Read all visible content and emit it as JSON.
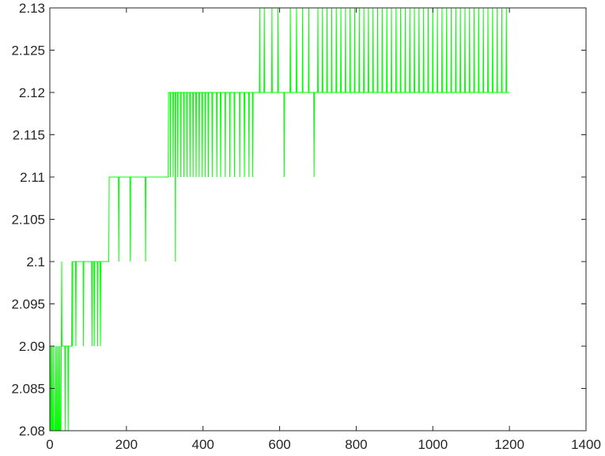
{
  "chart_data": {
    "type": "line",
    "title": "",
    "xlabel": "",
    "ylabel": "",
    "xlim": [
      0,
      1400
    ],
    "ylim": [
      2.08,
      2.13
    ],
    "grid": false,
    "legend": "none",
    "x_ticks": [
      0,
      200,
      400,
      600,
      800,
      1000,
      1200,
      1400
    ],
    "x_tick_labels": [
      "0",
      "200",
      "400",
      "600",
      "800",
      "1000",
      "1200",
      "1400"
    ],
    "y_ticks": [
      2.08,
      2.085,
      2.09,
      2.095,
      2.1,
      2.105,
      2.11,
      2.115,
      2.12,
      2.125,
      2.13
    ],
    "y_tick_labels": [
      "2.08",
      "2.085",
      "2.09",
      "2.095",
      "2.1",
      "2.105",
      "2.11",
      "2.115",
      "2.12",
      "2.125",
      "2.13"
    ],
    "series": [
      {
        "color": "#00ff00",
        "x_start": 1,
        "x_end": 1200,
        "baseline": [
          {
            "from": 1,
            "to": 30,
            "value": 2.08
          },
          {
            "from": 30,
            "to": 60,
            "value": 2.09
          },
          {
            "from": 60,
            "to": 155,
            "value": 2.1
          },
          {
            "from": 155,
            "to": 310,
            "value": 2.11
          },
          {
            "from": 310,
            "to": 540,
            "value": 2.12
          },
          {
            "from": 540,
            "to": 1200,
            "value": 2.12
          }
        ],
        "outliers": [
          {
            "x": 2,
            "value": 2.09
          },
          {
            "x": 5,
            "value": 2.09
          },
          {
            "x": 9,
            "value": 2.09
          },
          {
            "x": 14,
            "value": 2.09
          },
          {
            "x": 18,
            "value": 2.09
          },
          {
            "x": 22,
            "value": 2.09
          },
          {
            "x": 26,
            "value": 2.09
          },
          {
            "x": 31,
            "value": 2.1
          },
          {
            "x": 40,
            "value": 2.08
          },
          {
            "x": 48,
            "value": 2.08
          },
          {
            "x": 58,
            "value": 2.1
          },
          {
            "x": 64,
            "value": 2.1
          },
          {
            "x": 68,
            "value": 2.09
          },
          {
            "x": 72,
            "value": 2.1
          },
          {
            "x": 80,
            "value": 2.1
          },
          {
            "x": 88,
            "value": 2.09
          },
          {
            "x": 95,
            "value": 2.1
          },
          {
            "x": 103,
            "value": 2.1
          },
          {
            "x": 110,
            "value": 2.09
          },
          {
            "x": 116,
            "value": 2.09
          },
          {
            "x": 120,
            "value": 2.1
          },
          {
            "x": 125,
            "value": 2.09
          },
          {
            "x": 132,
            "value": 2.09
          },
          {
            "x": 158,
            "value": 2.11
          },
          {
            "x": 172,
            "value": 2.11
          },
          {
            "x": 180,
            "value": 2.1
          },
          {
            "x": 188,
            "value": 2.11
          },
          {
            "x": 200,
            "value": 2.11
          },
          {
            "x": 210,
            "value": 2.1
          },
          {
            "x": 220,
            "value": 2.11
          },
          {
            "x": 232,
            "value": 2.11
          },
          {
            "x": 245,
            "value": 2.11
          },
          {
            "x": 250,
            "value": 2.1
          },
          {
            "x": 308,
            "value": 2.11
          },
          {
            "x": 315,
            "value": 2.11
          },
          {
            "x": 322,
            "value": 2.11
          },
          {
            "x": 328,
            "value": 2.1
          },
          {
            "x": 334,
            "value": 2.11
          },
          {
            "x": 342,
            "value": 2.11
          },
          {
            "x": 350,
            "value": 2.11
          },
          {
            "x": 358,
            "value": 2.11
          },
          {
            "x": 366,
            "value": 2.11
          },
          {
            "x": 374,
            "value": 2.11
          },
          {
            "x": 382,
            "value": 2.11
          },
          {
            "x": 390,
            "value": 2.11
          },
          {
            "x": 398,
            "value": 2.11
          },
          {
            "x": 406,
            "value": 2.11
          },
          {
            "x": 414,
            "value": 2.11
          },
          {
            "x": 424,
            "value": 2.11
          },
          {
            "x": 436,
            "value": 2.11
          },
          {
            "x": 446,
            "value": 2.11
          },
          {
            "x": 458,
            "value": 2.11
          },
          {
            "x": 470,
            "value": 2.11
          },
          {
            "x": 482,
            "value": 2.11
          },
          {
            "x": 496,
            "value": 2.11
          },
          {
            "x": 508,
            "value": 2.11
          },
          {
            "x": 520,
            "value": 2.11
          },
          {
            "x": 530,
            "value": 2.11
          },
          {
            "x": 548,
            "value": 2.13
          },
          {
            "x": 560,
            "value": 2.13
          },
          {
            "x": 580,
            "value": 2.13
          },
          {
            "x": 596,
            "value": 2.13
          },
          {
            "x": 612,
            "value": 2.11
          },
          {
            "x": 628,
            "value": 2.13
          },
          {
            "x": 644,
            "value": 2.13
          },
          {
            "x": 660,
            "value": 2.13
          },
          {
            "x": 676,
            "value": 2.13
          },
          {
            "x": 690,
            "value": 2.11
          },
          {
            "x": 700,
            "value": 2.13
          },
          {
            "x": 712,
            "value": 2.13
          },
          {
            "x": 724,
            "value": 2.13
          },
          {
            "x": 736,
            "value": 2.13
          },
          {
            "x": 748,
            "value": 2.13
          },
          {
            "x": 760,
            "value": 2.13
          },
          {
            "x": 772,
            "value": 2.13
          },
          {
            "x": 784,
            "value": 2.13
          },
          {
            "x": 796,
            "value": 2.13
          },
          {
            "x": 808,
            "value": 2.13
          },
          {
            "x": 820,
            "value": 2.13
          },
          {
            "x": 832,
            "value": 2.13
          },
          {
            "x": 844,
            "value": 2.13
          },
          {
            "x": 856,
            "value": 2.13
          },
          {
            "x": 868,
            "value": 2.13
          },
          {
            "x": 880,
            "value": 2.13
          },
          {
            "x": 892,
            "value": 2.13
          },
          {
            "x": 904,
            "value": 2.13
          },
          {
            "x": 916,
            "value": 2.13
          },
          {
            "x": 928,
            "value": 2.13
          },
          {
            "x": 940,
            "value": 2.13
          },
          {
            "x": 952,
            "value": 2.13
          },
          {
            "x": 964,
            "value": 2.13
          },
          {
            "x": 976,
            "value": 2.13
          },
          {
            "x": 988,
            "value": 2.13
          },
          {
            "x": 1000,
            "value": 2.13
          },
          {
            "x": 1012,
            "value": 2.13
          },
          {
            "x": 1024,
            "value": 2.13
          },
          {
            "x": 1036,
            "value": 2.13
          },
          {
            "x": 1048,
            "value": 2.13
          },
          {
            "x": 1060,
            "value": 2.13
          },
          {
            "x": 1072,
            "value": 2.13
          },
          {
            "x": 1084,
            "value": 2.13
          },
          {
            "x": 1096,
            "value": 2.13
          },
          {
            "x": 1108,
            "value": 2.13
          },
          {
            "x": 1120,
            "value": 2.13
          },
          {
            "x": 1132,
            "value": 2.13
          },
          {
            "x": 1144,
            "value": 2.13
          },
          {
            "x": 1156,
            "value": 2.13
          },
          {
            "x": 1168,
            "value": 2.13
          },
          {
            "x": 1180,
            "value": 2.13
          },
          {
            "x": 1192,
            "value": 2.13
          }
        ]
      }
    ]
  }
}
